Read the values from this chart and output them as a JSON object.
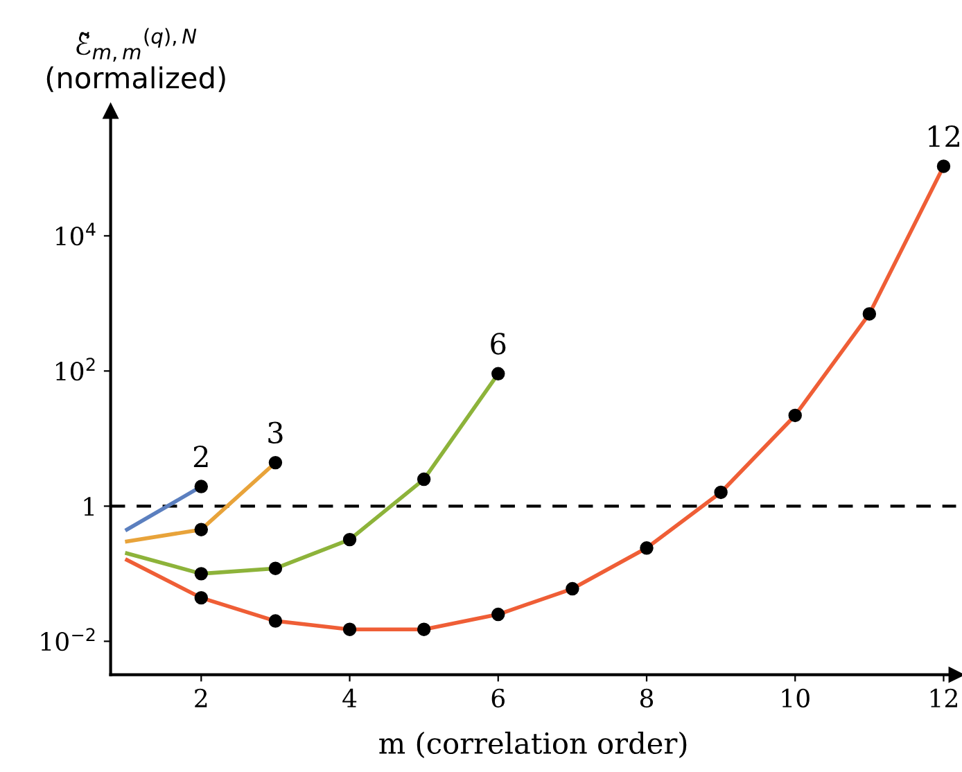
{
  "chart_data": {
    "type": "line",
    "xlabel": "m (correlation order)",
    "ylabel": "ℰ̃$_{m,m}$$^{(q),N}$\n(normalized)",
    "log": "y",
    "xlim": [
      0.78,
      12.17
    ],
    "ylim": [
      0.0032,
      700000
    ],
    "xticks": [
      2,
      4,
      6,
      8,
      10,
      12
    ],
    "yticks": [
      {
        "value": 0.01,
        "label": "10$^{−2}$"
      },
      1,
      {
        "value": 100,
        "label": "10$^{2}$"
      },
      {
        "value": 10000,
        "label": "10$^{4}$"
      }
    ],
    "grid": false,
    "legend": false,
    "marker": "circle",
    "line_style": "solid",
    "series": [
      {
        "color": "#5b7fbf",
        "x": [
          1,
          2
        ],
        "values": [
          0.45,
          1.95
        ]
      },
      {
        "color": "#e8a33a",
        "x": [
          1,
          2,
          3
        ],
        "values": [
          0.3,
          0.45,
          4.4
        ]
      },
      {
        "color": "#8db33a",
        "x": [
          1,
          2,
          3,
          4,
          5,
          6
        ],
        "values": [
          0.2,
          0.1,
          0.12,
          0.32,
          2.5,
          91
        ]
      },
      {
        "color": "#ef5e36",
        "x": [
          1,
          2,
          3,
          4,
          5,
          6,
          7,
          8,
          9,
          10,
          11,
          12
        ],
        "values": [
          0.16,
          0.044,
          0.02,
          0.015,
          0.015,
          0.025,
          0.06,
          0.24,
          1.6,
          22,
          700,
          107000
        ]
      }
    ],
    "ref_lines": [
      {
        "axis": "y",
        "value": 1,
        "color": "#000000",
        "line_style": "dashed"
      }
    ],
    "annotations": [
      {
        "text": "2",
        "x": 2,
        "y": 1.95
      },
      {
        "text": "3",
        "x": 3,
        "y": 4.4
      },
      {
        "text": "6",
        "x": 6,
        "y": 91
      },
      {
        "text": "12",
        "x": 12,
        "y": 107000
      }
    ]
  }
}
